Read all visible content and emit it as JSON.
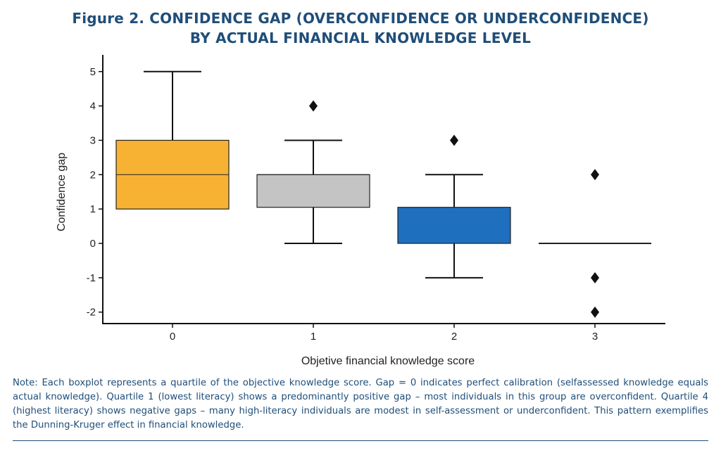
{
  "figure": {
    "title_line1": "Figure 2. CONFIDENCE GAP (OVERCONFIDENCE OR UNDERCONFIDENCE)",
    "title_line2": "BY ACTUAL FINANCIAL KNOWLEDGE LEVEL",
    "note": "Note: Each boxplot represents a quartile of the objective knowledge score. Gap = 0 indicates perfect calibration (selfassessed knowledge equals actual knowledge). Quartile 1 (lowest literacy) shows a predominantly positive gap – most individuals in this group are overconfident. Quartile 4 (highest literacy) shows negative gaps – many high-literacy individuals are modest in self-assessment or underconfident. This pattern exemplifies the Dunning-Kruger effect in financial knowledge."
  },
  "chart_data": {
    "type": "box",
    "title": "Figure 2. CONFIDENCE GAP (OVERCONFIDENCE OR UNDERCONFIDENCE) BY ACTUAL FINANCIAL KNOWLEDGE LEVEL",
    "xlabel": "Objetive financial knowledge score",
    "ylabel": "Confidence gap",
    "categories": [
      "0",
      "1",
      "2",
      "3"
    ],
    "ylim": [
      -2.3,
      5.3
    ],
    "yticks": [
      -2,
      -1,
      0,
      1,
      2,
      3,
      4,
      5
    ],
    "grid": false,
    "boxes": [
      {
        "category": "0",
        "whisker_low": 1,
        "q1": 1,
        "median": 2,
        "q3": 3,
        "whisker_high": 5,
        "outliers": [],
        "color": "#f7b233"
      },
      {
        "category": "1",
        "whisker_low": 0,
        "q1": 1.05,
        "median": 2,
        "q3": 2,
        "whisker_high": 3,
        "outliers": [
          4
        ],
        "color": "#c4c4c4"
      },
      {
        "category": "2",
        "whisker_low": -1,
        "q1": 0,
        "median": 0,
        "q3": 1.05,
        "whisker_high": 2,
        "outliers": [
          3
        ],
        "color": "#1f6fbf"
      },
      {
        "category": "3",
        "whisker_low": 0,
        "q1": 0,
        "median": 0,
        "q3": 0,
        "whisker_high": 0,
        "outliers": [
          2,
          -1,
          -2
        ],
        "color": "#1f6fbf"
      }
    ]
  }
}
